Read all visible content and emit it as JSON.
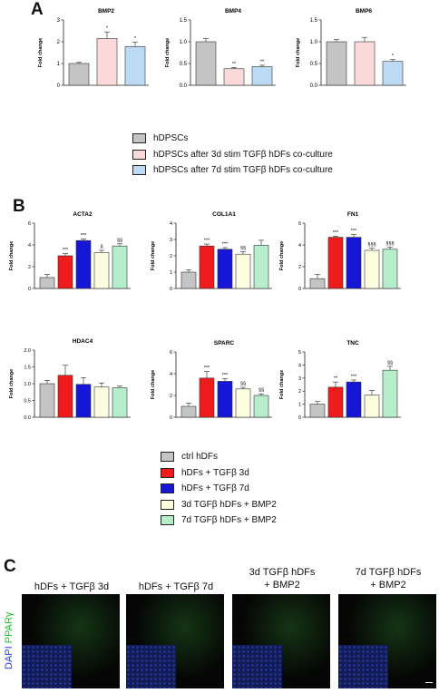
{
  "panel_labels": {
    "a": "A",
    "b": "B",
    "c": "C"
  },
  "colors": {
    "grey": "#c4c4c4",
    "pink": "#fbd9d9",
    "lightblue": "#bcdaf3",
    "red": "#ee1c1c",
    "blue": "#1616d6",
    "cream": "#fdfde0",
    "mint": "#b6edca"
  },
  "legend_a": [
    {
      "label": "hDPSCs",
      "color": "#c4c4c4"
    },
    {
      "label": "hDPSCs after 3d stim TGFβ hDFs co-culture",
      "color": "#fbd9d9"
    },
    {
      "label": "hDPSCs after 7d stim TGFβ hDFs co-culture",
      "color": "#bcdaf3"
    }
  ],
  "legend_b": [
    {
      "label": "ctrl hDFs",
      "color": "#c4c4c4"
    },
    {
      "label": "hDFs + TGFβ 3d",
      "color": "#ee1c1c"
    },
    {
      "label": "hDFs + TGFβ 7d",
      "color": "#1616d6"
    },
    {
      "label": "3d TGFβ hDFs + BMP2",
      "color": "#fdfde0"
    },
    {
      "label": "7d TGFβ hDFs + BMP2",
      "color": "#b6edca"
    }
  ],
  "chart_data": [
    {
      "type": "bar",
      "title": "BMP2",
      "ylabel": "Fold change",
      "ylim": [
        0,
        3
      ],
      "yticks": [
        "0",
        "1",
        "2",
        "3"
      ],
      "values": [
        1.0,
        2.15,
        1.78
      ],
      "errors": [
        0.05,
        0.3,
        0.2
      ],
      "annotations": [
        "",
        "*",
        "*"
      ],
      "colors": [
        "#c4c4c4",
        "#fbd9d9",
        "#bcdaf3"
      ]
    },
    {
      "type": "bar",
      "title": "BMP4",
      "ylabel": "Fold change",
      "ylim": [
        0,
        1.5
      ],
      "yticks": [
        "0.0",
        "0.5",
        "1.0",
        "1.5"
      ],
      "values": [
        1.0,
        0.38,
        0.43
      ],
      "errors": [
        0.07,
        0.03,
        0.03
      ],
      "annotations": [
        "",
        "**",
        "**"
      ],
      "colors": [
        "#c4c4c4",
        "#fbd9d9",
        "#bcdaf3"
      ]
    },
    {
      "type": "bar",
      "title": "BMP6",
      "ylabel": "Fold change",
      "ylim": [
        0,
        1.5
      ],
      "yticks": [
        "0.0",
        "0.5",
        "1.0",
        "1.5"
      ],
      "values": [
        1.0,
        1.0,
        0.55
      ],
      "errors": [
        0.05,
        0.1,
        0.04
      ],
      "annotations": [
        "",
        "",
        "*"
      ],
      "colors": [
        "#c4c4c4",
        "#fbd9d9",
        "#bcdaf3"
      ]
    },
    {
      "type": "bar",
      "title": "ACTA2",
      "ylabel": "Fold change",
      "ylim": [
        0,
        6
      ],
      "yticks": [
        "0",
        "2",
        "4",
        "6"
      ],
      "values": [
        1.0,
        3.0,
        4.4,
        3.3,
        3.9
      ],
      "errors": [
        0.3,
        0.2,
        0.15,
        0.2,
        0.2
      ],
      "annotations": [
        "",
        "***",
        "***",
        "§",
        "§§"
      ],
      "colors": [
        "#c4c4c4",
        "#ee1c1c",
        "#1616d6",
        "#fdfde0",
        "#b6edca"
      ]
    },
    {
      "type": "bar",
      "title": "COL1A1",
      "ylabel": "Fold change",
      "ylim": [
        0,
        4
      ],
      "yticks": [
        "0",
        "1",
        "2",
        "3",
        "4"
      ],
      "values": [
        1.0,
        2.6,
        2.4,
        2.1,
        2.65
      ],
      "errors": [
        0.15,
        0.12,
        0.1,
        0.15,
        0.3
      ],
      "annotations": [
        "",
        "***",
        "***",
        "§§",
        ""
      ],
      "colors": [
        "#c4c4c4",
        "#ee1c1c",
        "#1616d6",
        "#fdfde0",
        "#b6edca"
      ]
    },
    {
      "type": "bar",
      "title": "FN1",
      "ylabel": "Fold change",
      "ylim": [
        0,
        6
      ],
      "yticks": [
        "0",
        "2",
        "4",
        "6"
      ],
      "values": [
        0.9,
        4.7,
        4.7,
        3.5,
        3.6
      ],
      "errors": [
        0.4,
        0.1,
        0.25,
        0.2,
        0.2
      ],
      "annotations": [
        "",
        "***",
        "***",
        "§§§",
        "§§§"
      ],
      "colors": [
        "#c4c4c4",
        "#ee1c1c",
        "#1616d6",
        "#fdfde0",
        "#b6edca"
      ]
    },
    {
      "type": "bar",
      "title": "HDAC4",
      "ylabel": "Fold change",
      "ylim": [
        0,
        2.0
      ],
      "yticks": [
        "0.0",
        "0.5",
        "1.0",
        "1.5",
        "2.0"
      ],
      "values": [
        1.0,
        1.25,
        0.98,
        0.9,
        0.88
      ],
      "errors": [
        0.1,
        0.3,
        0.2,
        0.12,
        0.05
      ],
      "annotations": [
        "",
        "",
        "",
        "",
        ""
      ],
      "colors": [
        "#c4c4c4",
        "#ee1c1c",
        "#1616d6",
        "#fdfde0",
        "#b6edca"
      ]
    },
    {
      "type": "bar",
      "title": "SPARC",
      "ylabel": "Fold change",
      "ylim": [
        0,
        6
      ],
      "yticks": [
        "0",
        "2",
        "4",
        "6"
      ],
      "values": [
        1.0,
        3.6,
        3.3,
        2.6,
        2.0
      ],
      "errors": [
        0.3,
        0.6,
        0.25,
        0.15,
        0.15
      ],
      "annotations": [
        "",
        "***",
        "***",
        "§§",
        "§§"
      ],
      "colors": [
        "#c4c4c4",
        "#ee1c1c",
        "#1616d6",
        "#fdfde0",
        "#b6edca"
      ]
    },
    {
      "type": "bar",
      "title": "TNC",
      "ylabel": "Fold change",
      "ylim": [
        0,
        5
      ],
      "yticks": [
        "0",
        "1",
        "2",
        "3",
        "4",
        "5"
      ],
      "values": [
        1.0,
        2.3,
        2.7,
        1.7,
        3.6
      ],
      "errors": [
        0.2,
        0.4,
        0.15,
        0.35,
        0.3
      ],
      "annotations": [
        "",
        "**",
        "***",
        "",
        "§§"
      ],
      "colors": [
        "#c4c4c4",
        "#ee1c1c",
        "#1616d6",
        "#fdfde0",
        "#b6edca"
      ]
    }
  ],
  "micrographs": {
    "side_label_dapi": "DAPI",
    "side_label_ppar": "PPARγ",
    "titles": [
      "hDFs + TGFβ 3d",
      "hDFs + TGFβ 7d",
      "3d TGFβ hDFs\n+ BMP2",
      "7d TGFβ hDFs\n+ BMP2"
    ]
  }
}
